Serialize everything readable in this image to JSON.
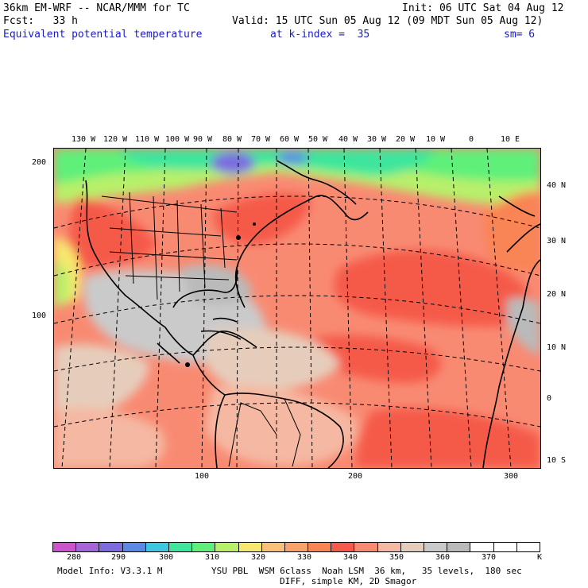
{
  "header": {
    "model": "36km EM-WRF -- NCAR/MMM for TC",
    "init": "Init: 06 UTC Sat 04 Aug 12",
    "fcst": "Fcst:   33 h",
    "valid": "Valid: 15 UTC Sun 05 Aug 12 (09 MDT Sun 05 Aug 12)",
    "field": "Equivalent potential temperature",
    "kindex": "at k-index =  35",
    "sm": "sm= 6"
  },
  "lon_labels": [
    "130 W",
    "120 W",
    "110 W",
    "100 W",
    "90 W",
    "80 W",
    "70 W",
    "60 W",
    "50 W",
    "40 W",
    "30 W",
    "20 W",
    "10 W",
    "0",
    "10 E"
  ],
  "lat_labels": [
    "40 N",
    "30 N",
    "20 N",
    "10 N",
    "0",
    "10 S"
  ],
  "grid_y_labels": [
    "200",
    "100"
  ],
  "grid_x_labels": [
    "100",
    "200",
    "300"
  ],
  "colorbar": {
    "colors": [
      "#cc55cc",
      "#a466d8",
      "#7c6ce0",
      "#5a8ae6",
      "#3ec7e0",
      "#3ee69c",
      "#5ef07a",
      "#b8f06a",
      "#f6e86e",
      "#f9c07a",
      "#f9a36a",
      "#f98454",
      "#f55a4a",
      "#f98a72",
      "#f5b8a2",
      "#e6cdbb",
      "#cacaca",
      "#bababa",
      "#ffffff",
      "#ffffff",
      "#ffffff"
    ],
    "labels": [
      "280",
      "290",
      "300",
      "310",
      "320",
      "330",
      "340",
      "350",
      "360",
      "370"
    ],
    "unit": "K"
  },
  "footer": {
    "line1": "Model Info: V3.3.1 M",
    "line1b": "YSU PBL  WSM 6class  Noah LSM  36 km,   35 levels,  180 sec",
    "line2": "DIFF, simple KM, 2D Smagor"
  }
}
